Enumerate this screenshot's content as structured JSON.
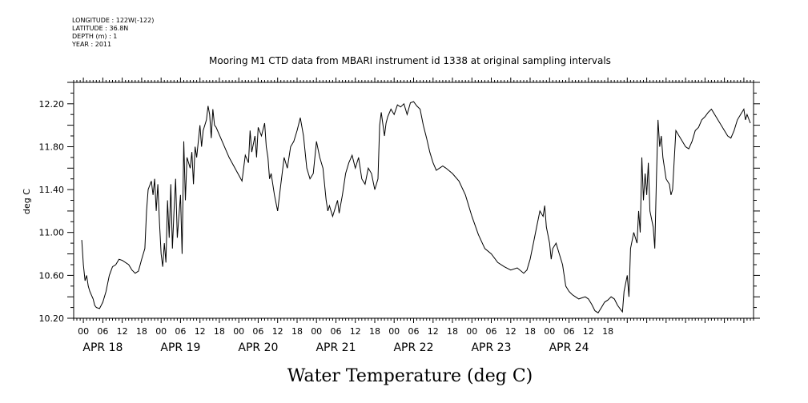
{
  "meta": {
    "longitude": "LONGITUDE : 122W(-122)",
    "latitude": "LATITUDE : 36.8N",
    "depth": "DEPTH (m) : 1",
    "year": "YEAR : 2011"
  },
  "chart_data": {
    "type": "line",
    "title": "Mooring M1 CTD data from MBARI instrument id 1338 at original sampling intervals",
    "xlabel": "Water Temperature (deg C)",
    "ylabel": "deg C",
    "ylim": [
      10.2,
      12.4
    ],
    "xlim_hours": [
      -3,
      207
    ],
    "yticks": [
      "10.20",
      "10.60",
      "11.00",
      "11.40",
      "11.80",
      "12.20"
    ],
    "hour_tick_labels": [
      "00",
      "06",
      "12",
      "18"
    ],
    "days": [
      "APR 18",
      "APR 19",
      "APR 20",
      "APR 21",
      "APR 22",
      "APR 23",
      "APR 24"
    ],
    "series": [
      {
        "values": [
          [
            -0.5,
            10.93
          ],
          [
            0,
            10.7
          ],
          [
            0.5,
            10.55
          ],
          [
            1,
            10.6
          ],
          [
            1.5,
            10.5
          ],
          [
            2,
            10.45
          ],
          [
            3,
            10.38
          ],
          [
            3.5,
            10.32
          ],
          [
            4,
            10.3
          ],
          [
            5,
            10.29
          ],
          [
            6,
            10.35
          ],
          [
            7,
            10.45
          ],
          [
            8,
            10.6
          ],
          [
            9,
            10.68
          ],
          [
            10,
            10.7
          ],
          [
            11,
            10.75
          ],
          [
            12,
            10.74
          ],
          [
            14,
            10.7
          ],
          [
            15,
            10.65
          ],
          [
            16,
            10.62
          ],
          [
            17,
            10.64
          ],
          [
            18,
            10.75
          ],
          [
            19,
            10.85
          ],
          [
            19.5,
            11.2
          ],
          [
            20,
            11.4
          ],
          [
            21,
            11.48
          ],
          [
            21.5,
            11.35
          ],
          [
            22,
            11.5
          ],
          [
            22.5,
            11.2
          ],
          [
            23,
            11.45
          ],
          [
            23.5,
            11.1
          ],
          [
            24,
            10.8
          ],
          [
            24.5,
            10.68
          ],
          [
            25,
            10.9
          ],
          [
            25.5,
            10.72
          ],
          [
            26,
            11.3
          ],
          [
            26.5,
            10.95
          ],
          [
            27,
            11.45
          ],
          [
            27.5,
            10.85
          ],
          [
            28,
            11.2
          ],
          [
            28.5,
            11.5
          ],
          [
            29,
            10.95
          ],
          [
            30,
            11.35
          ],
          [
            30.5,
            10.8
          ],
          [
            31,
            11.85
          ],
          [
            31.5,
            11.3
          ],
          [
            32,
            11.7
          ],
          [
            33,
            11.6
          ],
          [
            33.5,
            11.75
          ],
          [
            34,
            11.45
          ],
          [
            34.5,
            11.8
          ],
          [
            35,
            11.7
          ],
          [
            36,
            12.0
          ],
          [
            36.5,
            11.8
          ],
          [
            37,
            11.95
          ],
          [
            38,
            12.05
          ],
          [
            38.5,
            12.18
          ],
          [
            39,
            12.1
          ],
          [
            39.5,
            11.88
          ],
          [
            40,
            12.15
          ],
          [
            40.5,
            12.0
          ],
          [
            41,
            11.98
          ],
          [
            45,
            11.7
          ],
          [
            49,
            11.48
          ],
          [
            50,
            11.72
          ],
          [
            51,
            11.65
          ],
          [
            51.5,
            11.95
          ],
          [
            52,
            11.75
          ],
          [
            53,
            11.9
          ],
          [
            53.5,
            11.7
          ],
          [
            54,
            11.98
          ],
          [
            55,
            11.9
          ],
          [
            56,
            12.02
          ],
          [
            56.5,
            11.8
          ],
          [
            57,
            11.7
          ],
          [
            57.5,
            11.5
          ],
          [
            58,
            11.55
          ],
          [
            59,
            11.35
          ],
          [
            60,
            11.2
          ],
          [
            61,
            11.45
          ],
          [
            62,
            11.7
          ],
          [
            63,
            11.6
          ],
          [
            64,
            11.8
          ],
          [
            65,
            11.85
          ],
          [
            66,
            11.95
          ],
          [
            67,
            12.07
          ],
          [
            68,
            11.9
          ],
          [
            69,
            11.6
          ],
          [
            70,
            11.5
          ],
          [
            71,
            11.55
          ],
          [
            72,
            11.85
          ],
          [
            73,
            11.7
          ],
          [
            74,
            11.6
          ],
          [
            75,
            11.3
          ],
          [
            75.5,
            11.2
          ],
          [
            76,
            11.25
          ],
          [
            77,
            11.15
          ],
          [
            78,
            11.25
          ],
          [
            78.5,
            11.3
          ],
          [
            79,
            11.18
          ],
          [
            80,
            11.35
          ],
          [
            81,
            11.55
          ],
          [
            82,
            11.65
          ],
          [
            83,
            11.72
          ],
          [
            84,
            11.6
          ],
          [
            85,
            11.7
          ],
          [
            86,
            11.5
          ],
          [
            87,
            11.45
          ],
          [
            88,
            11.6
          ],
          [
            89,
            11.55
          ],
          [
            90,
            11.4
          ],
          [
            91,
            11.5
          ],
          [
            91.5,
            12.0
          ],
          [
            92,
            12.12
          ],
          [
            93,
            11.9
          ],
          [
            93.5,
            12.02
          ],
          [
            94,
            12.08
          ],
          [
            95,
            12.15
          ],
          [
            96,
            12.1
          ],
          [
            97,
            12.19
          ],
          [
            98,
            12.17
          ],
          [
            99,
            12.2
          ],
          [
            100,
            12.1
          ],
          [
            101,
            12.21
          ],
          [
            102,
            12.22
          ],
          [
            103,
            12.18
          ],
          [
            104,
            12.15
          ],
          [
            105,
            12.0
          ],
          [
            106,
            11.88
          ],
          [
            107,
            11.75
          ],
          [
            108,
            11.65
          ],
          [
            109,
            11.58
          ],
          [
            110,
            11.6
          ],
          [
            111,
            11.62
          ],
          [
            112,
            11.6
          ],
          [
            114,
            11.55
          ],
          [
            116,
            11.48
          ],
          [
            118,
            11.35
          ],
          [
            120,
            11.15
          ],
          [
            122,
            10.98
          ],
          [
            124,
            10.85
          ],
          [
            126,
            10.8
          ],
          [
            128,
            10.72
          ],
          [
            130,
            10.68
          ],
          [
            132,
            10.65
          ],
          [
            134,
            10.67
          ],
          [
            136,
            10.62
          ],
          [
            137,
            10.65
          ],
          [
            138,
            10.75
          ],
          [
            139,
            10.9
          ],
          [
            140,
            11.05
          ],
          [
            141,
            11.2
          ],
          [
            142,
            11.15
          ],
          [
            142.5,
            11.25
          ],
          [
            143,
            11.05
          ],
          [
            144,
            10.9
          ],
          [
            144.5,
            10.75
          ],
          [
            145,
            10.85
          ],
          [
            146,
            10.9
          ],
          [
            147,
            10.8
          ],
          [
            148,
            10.7
          ],
          [
            149,
            10.5
          ],
          [
            150,
            10.45
          ],
          [
            151,
            10.42
          ],
          [
            152,
            10.4
          ],
          [
            153,
            10.38
          ],
          [
            154,
            10.39
          ],
          [
            155,
            10.4
          ],
          [
            156,
            10.38
          ],
          [
            157,
            10.33
          ],
          [
            158,
            10.27
          ],
          [
            159,
            10.25
          ],
          [
            160,
            10.3
          ],
          [
            161,
            10.35
          ],
          [
            162,
            10.37
          ],
          [
            163,
            10.4
          ],
          [
            164,
            10.38
          ],
          [
            165,
            10.32
          ],
          [
            166,
            10.28
          ],
          [
            166.5,
            10.26
          ],
          [
            167,
            10.45
          ],
          [
            168,
            10.6
          ],
          [
            168.5,
            10.4
          ],
          [
            169,
            10.85
          ],
          [
            170,
            11.0
          ],
          [
            171,
            10.9
          ],
          [
            171.5,
            11.2
          ],
          [
            172,
            11.0
          ],
          [
            172.5,
            11.7
          ],
          [
            173,
            11.3
          ],
          [
            173.5,
            11.55
          ],
          [
            174,
            11.35
          ],
          [
            174.5,
            11.65
          ],
          [
            175,
            11.2
          ],
          [
            176,
            11.05
          ],
          [
            176.5,
            10.85
          ],
          [
            177,
            11.5
          ],
          [
            177.5,
            12.05
          ],
          [
            178,
            11.8
          ],
          [
            178.5,
            11.9
          ],
          [
            179,
            11.7
          ],
          [
            180,
            11.5
          ],
          [
            181,
            11.45
          ],
          [
            181.5,
            11.35
          ],
          [
            182,
            11.4
          ],
          [
            183,
            11.95
          ],
          [
            184,
            11.9
          ],
          [
            185,
            11.85
          ],
          [
            186,
            11.8
          ],
          [
            187,
            11.78
          ],
          [
            188,
            11.85
          ],
          [
            189,
            11.95
          ],
          [
            190,
            11.98
          ],
          [
            191,
            12.05
          ],
          [
            192,
            12.08
          ],
          [
            193,
            12.12
          ],
          [
            194,
            12.15
          ],
          [
            195,
            12.1
          ],
          [
            196,
            12.05
          ],
          [
            197,
            12.0
          ],
          [
            198,
            11.95
          ],
          [
            199,
            11.9
          ],
          [
            200,
            11.88
          ],
          [
            201,
            11.95
          ],
          [
            202,
            12.05
          ],
          [
            203,
            12.1
          ],
          [
            204,
            12.15
          ],
          [
            204.5,
            12.05
          ],
          [
            205,
            12.1
          ],
          [
            206,
            12.02
          ]
        ]
      }
    ]
  }
}
